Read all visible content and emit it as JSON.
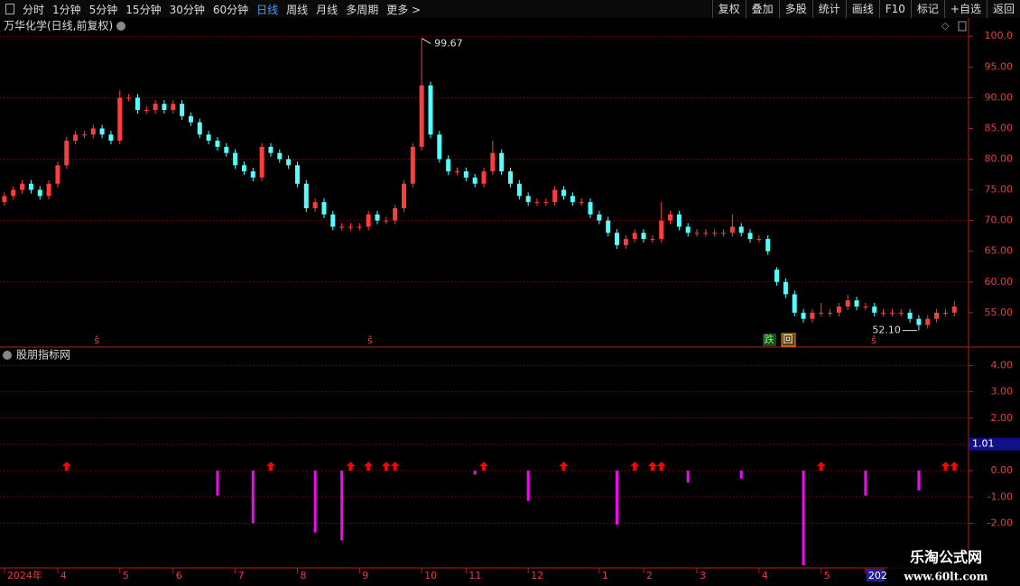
{
  "toolbar": {
    "left": [
      "分时",
      "1分钟",
      "5分钟",
      "15分钟",
      "30分钟",
      "60分钟",
      "日线",
      "周线",
      "月线",
      "多周期",
      "更多 >"
    ],
    "active": "日线",
    "right": [
      "复权",
      "叠加",
      "多股",
      "统计",
      "画线",
      "F10",
      "标记",
      "+自选",
      "返回"
    ]
  },
  "chart_data": [
    {
      "type": "candlestick",
      "title": "万华化学(日线,前复权)",
      "up_color": "#ff3c3c",
      "down_color": "#54ffff",
      "candles": [
        [
          73,
          74.6,
          72.4,
          74
        ],
        [
          74,
          75.6,
          73.4,
          75
        ],
        [
          75,
          76.6,
          74.4,
          76
        ],
        [
          76,
          76.6,
          74.4,
          75
        ],
        [
          75,
          75.6,
          73.4,
          74
        ],
        [
          74,
          76.6,
          73.4,
          76
        ],
        [
          76,
          79.6,
          75.4,
          79
        ],
        [
          79,
          83.6,
          78.4,
          83
        ],
        [
          83,
          84.6,
          82.4,
          84
        ],
        [
          84,
          84.6,
          83.4,
          84
        ],
        [
          84,
          85.6,
          83.4,
          85
        ],
        [
          85,
          85.6,
          83.4,
          84
        ],
        [
          84,
          84.6,
          82.4,
          83
        ],
        [
          83,
          91.2,
          82.4,
          90
        ],
        [
          90,
          90.6,
          89.4,
          90
        ],
        [
          90,
          90.6,
          87.4,
          88
        ],
        [
          88,
          88.6,
          87.4,
          88
        ],
        [
          88,
          89.6,
          87.4,
          89
        ],
        [
          89,
          89.6,
          87.4,
          88
        ],
        [
          88,
          89.6,
          87.4,
          89
        ],
        [
          89,
          89.6,
          86.4,
          87
        ],
        [
          87,
          87.6,
          85.4,
          86
        ],
        [
          86,
          86.6,
          83.4,
          84
        ],
        [
          84,
          84.6,
          82.4,
          83
        ],
        [
          83,
          83.6,
          81.4,
          82
        ],
        [
          82,
          82.6,
          80.4,
          81
        ],
        [
          81,
          81.6,
          78.4,
          79
        ],
        [
          79,
          79.6,
          77.4,
          78
        ],
        [
          78,
          78.6,
          76.4,
          77
        ],
        [
          77,
          82.6,
          76.4,
          82
        ],
        [
          82,
          82.6,
          80.4,
          81
        ],
        [
          81,
          81.6,
          79.4,
          80
        ],
        [
          80,
          80.6,
          78.4,
          79
        ],
        [
          79,
          79.6,
          75.4,
          76
        ],
        [
          76,
          76.6,
          71.4,
          72
        ],
        [
          72,
          73.6,
          71.4,
          73
        ],
        [
          73,
          73.6,
          70.4,
          71
        ],
        [
          71,
          71.6,
          68.4,
          69
        ],
        [
          69,
          69.6,
          68.4,
          69
        ],
        [
          69,
          69.6,
          68.4,
          69
        ],
        [
          69,
          69.6,
          68.4,
          69
        ],
        [
          69,
          71.6,
          68.4,
          71
        ],
        [
          71,
          71.6,
          69.4,
          70
        ],
        [
          70,
          70.6,
          69.4,
          70
        ],
        [
          70,
          72.6,
          69.4,
          72
        ],
        [
          72,
          76.6,
          71.4,
          76
        ],
        [
          76,
          82.6,
          75.4,
          82
        ],
        [
          82,
          99.67,
          81.4,
          92
        ],
        [
          92,
          92.6,
          83.4,
          84
        ],
        [
          84,
          84.6,
          79.4,
          80
        ],
        [
          80,
          80.6,
          77.4,
          78
        ],
        [
          78,
          78.6,
          77.4,
          78
        ],
        [
          78,
          78.6,
          76.4,
          77
        ],
        [
          77,
          77.6,
          75.4,
          76
        ],
        [
          76,
          78.6,
          75.4,
          78
        ],
        [
          78,
          83,
          77.4,
          81
        ],
        [
          81,
          81.6,
          77.4,
          78
        ],
        [
          78,
          78.6,
          75.4,
          76
        ],
        [
          76,
          76.6,
          73.4,
          74
        ],
        [
          74,
          74.6,
          72.4,
          73
        ],
        [
          73,
          73.6,
          72.4,
          73
        ],
        [
          73,
          73.6,
          72.4,
          73
        ],
        [
          73,
          75.6,
          72.4,
          75
        ],
        [
          75,
          75.6,
          73.4,
          74
        ],
        [
          74,
          74.6,
          72.4,
          73
        ],
        [
          73,
          73.6,
          72.4,
          73
        ],
        [
          73,
          73.6,
          70.4,
          71
        ],
        [
          71,
          71.6,
          69.4,
          70
        ],
        [
          70,
          70.6,
          67.4,
          68
        ],
        [
          68,
          68.6,
          65.4,
          66
        ],
        [
          66,
          67.6,
          65.4,
          67
        ],
        [
          67,
          68.6,
          66.4,
          68
        ],
        [
          68,
          68.6,
          66.4,
          67
        ],
        [
          67,
          67.6,
          66.4,
          67
        ],
        [
          67,
          73,
          66.4,
          70
        ],
        [
          70,
          71.6,
          69.4,
          71
        ],
        [
          71,
          71.6,
          68.4,
          69
        ],
        [
          69,
          69.6,
          67.4,
          68
        ],
        [
          68,
          68.6,
          67.4,
          68
        ],
        [
          68,
          68.6,
          67.4,
          68
        ],
        [
          68,
          68.6,
          67.4,
          68
        ],
        [
          68,
          68.6,
          67.4,
          68
        ],
        [
          68,
          71,
          67.4,
          69
        ],
        [
          69,
          69.6,
          67.4,
          68
        ],
        [
          68,
          68.6,
          66.4,
          67
        ],
        [
          67,
          67.6,
          66.4,
          67
        ],
        [
          67,
          67.6,
          64.4,
          65
        ],
        [
          62,
          62.4,
          59.4,
          60
        ],
        [
          60,
          60.6,
          57.4,
          58
        ],
        [
          58,
          58.6,
          54.4,
          55
        ],
        [
          55,
          55.6,
          53.4,
          54
        ],
        [
          54,
          55.6,
          53.4,
          55
        ],
        [
          55,
          56.6,
          54.4,
          55
        ],
        [
          55,
          55.6,
          54.4,
          55
        ],
        [
          55,
          56.6,
          54.4,
          56
        ],
        [
          56,
          57.9,
          55.4,
          57
        ],
        [
          57,
          57.6,
          55.4,
          56
        ],
        [
          56,
          56.6,
          55.4,
          56
        ],
        [
          56,
          56.6,
          54.4,
          55
        ],
        [
          55,
          55.6,
          54.4,
          55
        ],
        [
          55,
          55.6,
          54.4,
          55
        ],
        [
          55,
          55.6,
          54.4,
          55
        ],
        [
          55,
          55.6,
          53.4,
          54
        ],
        [
          54,
          54.6,
          52.1,
          53
        ],
        [
          53,
          54.6,
          52.4,
          54
        ],
        [
          54,
          55.6,
          53.4,
          55
        ],
        [
          55,
          55.6,
          54.4,
          55
        ],
        [
          55,
          56.9,
          54.4,
          56
        ]
      ],
      "annotations": [
        "99.67",
        "52.10"
      ],
      "signals": [
        "ŝ",
        "ŝ",
        "ŝ"
      ],
      "badges": [
        "跌",
        "回"
      ],
      "xlim": [
        -0.5,
        108.5
      ],
      "xticks": [
        {
          "value": 0,
          "label": "2024年"
        },
        {
          "value": 6,
          "label": "4"
        },
        {
          "value": 13,
          "label": "5"
        },
        {
          "value": 19,
          "label": "6"
        },
        {
          "value": 26,
          "label": "7"
        },
        {
          "value": 33,
          "label": "8"
        },
        {
          "value": 40,
          "label": "9"
        },
        {
          "value": 47,
          "label": "10"
        },
        {
          "value": 52,
          "label": "11"
        },
        {
          "value": 59,
          "label": "12"
        },
        {
          "value": 67,
          "label": "1"
        },
        {
          "value": 72,
          "label": "2"
        },
        {
          "value": 78,
          "label": "3"
        },
        {
          "value": 85,
          "label": "4"
        },
        {
          "value": 92,
          "label": "5"
        },
        {
          "value": 97,
          "label": "202"
        }
      ],
      "ylim": [
        49.4,
        101.5
      ],
      "yticks": [
        {
          "value": 55,
          "label": "55.00"
        },
        {
          "value": 60,
          "label": "60.00"
        },
        {
          "value": 65,
          "label": "65.00"
        },
        {
          "value": 70,
          "label": "70.00"
        },
        {
          "value": 75,
          "label": "75.00"
        },
        {
          "value": 80,
          "label": "80.00"
        },
        {
          "value": 85,
          "label": "85.00"
        },
        {
          "value": 90,
          "label": "90.00"
        },
        {
          "value": 95,
          "label": "95.00"
        },
        {
          "value": 100,
          "label": "100.0"
        }
      ],
      "grid": true
    },
    {
      "type": "signal-bars",
      "title": "股朋指标网",
      "bar_color": "#ff00ff",
      "arrow_color": "#ff0000",
      "x": [
        24,
        28,
        35,
        38,
        53,
        59,
        69,
        77,
        83,
        90,
        97,
        103
      ],
      "values": [
        -0.95,
        -2.0,
        -2.35,
        -2.65,
        -0.15,
        -1.15,
        -2.05,
        -0.45,
        -0.3,
        -3.6,
        -0.95,
        -0.75
      ],
      "arrows_x": [
        7,
        30,
        39,
        41,
        43,
        44,
        54,
        63,
        71,
        73,
        74,
        92,
        106,
        107
      ],
      "last_value": 1.01,
      "xlim": [
        -0.5,
        108.5
      ],
      "ylim": [
        -3.7,
        4.7
      ],
      "yticks": [
        {
          "value": -2,
          "label": "-2.00"
        },
        {
          "value": -1,
          "label": "-1.00"
        },
        {
          "value": 0,
          "label": "0.00"
        },
        {
          "value": 1,
          "label": "1.00"
        },
        {
          "value": 2,
          "label": "2.00"
        },
        {
          "value": 3,
          "label": "3.00"
        },
        {
          "value": 4,
          "label": "4.00"
        }
      ],
      "grid": true
    }
  ],
  "watermark": {
    "title": "乐淘公式网",
    "url": "www.60lt.com"
  }
}
